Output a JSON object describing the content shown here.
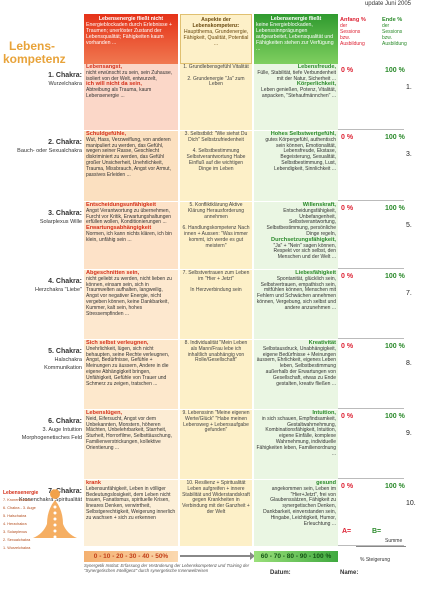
{
  "update": "update Juni 2005",
  "title": [
    "Lebens-",
    "kompetenz"
  ],
  "header": {
    "left_head": "Lebensenergie fließt nicht",
    "left_text": "Energieblockaden durch Erlebnisse + Traumen; unerlöster Zustand der Lebensqualität; Fähigkeiten kaum vorhanden ...",
    "mid_head": "Aspekte der Lebenskompetenz:",
    "mid_text": "Hauptthema, Grundenergie, Fähigkeit, Qualität, Potential ...",
    "right_head": "Lebensenergie fließt",
    "right_text": "keine Energieblockaden, Lebenssinnprägungen aufgearbeitet, Lebensqualität und Fähigkeiten stehen zur Verfügung ...",
    "anfang_title": "Anfang %",
    "anfang_lines": [
      "der",
      "Sessions",
      "bzw.",
      "Ausbildung"
    ],
    "ende_title": "Ende %",
    "ende_lines": [
      "der",
      "Sessions",
      "bzw.",
      "Ausbildung"
    ]
  },
  "rows": [
    {
      "chakra": "1. Chakra:",
      "chakra_sub": "Wurzelchakra",
      "left_head": "Lebensangst,",
      "left_text": "nicht erwünscht zu sein, sein Zuhause, isoliert von der Welt, entwurzelt,",
      "left_head2": "ich will nicht da sein,",
      "left_text2": "Abtreibung als Trauma, kaum Lebensenergie ...",
      "mid_text": "1. Grundlebensgefühl Vitalität\n\n2. Grundenergie \"Ja\" zum Leben",
      "right_head": "Lebensfreude,",
      "right_text": "Fülle, Stabilität, tiefe Verbundenheit mit der Natur, Sicherheit ...",
      "right_head2": "Körperlichkeit,",
      "right_text2": "Leben genießen, Potenz, Vitalität, anpacken, \"Stehaufmännchen\" ...",
      "start": "0 %",
      "end": "100 %",
      "num": "1."
    },
    {
      "chakra": "2. Chakra:",
      "chakra_sub": "Bauch- oder Sexualchakra",
      "left_head": "Schuldgefühle,",
      "left_text": "Wut, Hass, Verzweiflung, von anderen manipuliert zu werden, das Gefühl, wegen seiner Rasse, Geschlecht diskriminiert zu werden, das Gefühl großer Unsicherheit, Unehrlichkeit, Trauma, Missbrauch, Angst vor Armut, passives Erleiden ...",
      "left_head2": "",
      "left_text2": "",
      "mid_text": "3. Selbstbild: \"Wie siehst Du Dich\" Selbstzufriedenheit\n\n4. Selbstbestimmung Selbstverantwortung Habe Einfluß auf die wichtigen Dinge im Leben",
      "right_head": "Hohes Selbstwertgefühl,",
      "right_text": "gutes Körpergefühl, authentisch sein können, Emotionalität, Lebensfreude, Ekstase, Begeisterung, Sexualität, Selbstbestimmung, Lust, Lebendigkeit, Sinnlichkeit ...",
      "right_head2": "",
      "right_text2": "",
      "start": "0 %",
      "end": "100 %",
      "num": "3."
    },
    {
      "chakra": "3. Chakra:",
      "chakra_sub": "Solarplexus Wille",
      "left_head": "Entscheidungsunfähigkeit",
      "left_text": "Angst Verantwortung zu übernehmen, Furcht vor Kritik, Erwartungshaltungen erfüllen wollen, Konditionierungen ...",
      "left_head2": "Erwartungsabhängigkeit",
      "left_text2": "Normen, ich kann nichts klären, ich bin klein, unfähig sein ...",
      "mid_text": "5. Konfliktklärung Aktive Klärung Herausforderung annehmen\n\n6. Handlungskompetenz Nach innen + Aussen: \"Was immer kommt, ich werde es gut meistern\"",
      "right_head": "Willenskraft,",
      "right_text": "Entscheidungsfähigkeit, Unbefangenheit, Selbstverantwortung, Selbstbestimmung, persönliche Dinge regeln,",
      "right_head2": "Durchsetzungsfähigkeit,",
      "right_text2": "\"Ja\" + \"Nein\" sagen können, Respekt vor sich selbst, den Menschen und der Welt ...",
      "start": "0 %",
      "end": "100 %",
      "num": "5."
    },
    {
      "chakra": "4. Chakra:",
      "chakra_sub": "Herzchakra \"Liebe\"",
      "left_head": "Abgeschnitten sein,",
      "left_text": "nicht geliebt zu werden, nicht lieben zu können, einsam sein, sich in Traumwelten aufhalten, langweilig, Angst vor negativer Energie, nicht vergeben können, keine Dankbarkeit, Kummer, kalt sein, hohes Stressempfinden ...",
      "left_head2": "",
      "left_text2": "",
      "mid_text": "7. Selbstvertrauen zum Leben im \"Hier + Jetzt\"\n\nIn Herzverbindung sein",
      "right_head": "Liebesfähigkeit",
      "right_text": "Spontanität, glücklich sein, Selbstvertrauen, empathisch sein, mitfühlen können, Menschen mit Fehlern und Schwächen annehmen können, Vergebung, sich selbst und andere anzunehmen ...",
      "right_head2": "",
      "right_text2": "",
      "start": "0 %",
      "end": "100 %",
      "num": "7."
    },
    {
      "chakra": "5. Chakra:",
      "chakra_sub": "Halschakra",
      "chakra_sub2": "Kommunikation",
      "left_head": "Sich selbst verleugnen,",
      "left_text": "Unehrlichkeit, lügen, sich nicht behaupten, seine Rechte verleugnen, Angst, Bedürfnisse, Gefühle + Meinungen zu äussern, Andere in die eigene Abhängigkeit bringen, Unfähigkeit, Gefühle von Trauer und Schmerz zu zeigen, tratschen ...",
      "left_head2": "",
      "left_text2": "",
      "mid_text": "8. Individualität \"Mein Leben als Mann/Frau lebe ich inhaltlich unabhängig von Rolle/Gesellschaft\"",
      "right_head": "Kreativität",
      "right_text": "Selbstausdruck, Unabhängigkeit, eigene Bedürfnisse + Meinungen äussern, Ehrlichkeit, eigenes Leben leben, Selbstbestimmung außerhalb der Erwartungen von Gesellschaft, etwas zu Ende gestalten, kreativ fließen ...",
      "right_head2": "",
      "right_text2": "",
      "start": "0 %",
      "end": "100 %",
      "num": "8."
    },
    {
      "chakra": "6. Chakra:",
      "chakra_sub": "3. Auge Intuition Morphogenetisches Feld",
      "left_head": "Lebenslügen,",
      "left_text": "Neid, Eifersucht, Angst vor dem Unbekannten, Monstern, höheren Mächten, Unbelehrbarkeit, Starrheit, Sturheit, Horrorfilme, Selbsttäuschung, Familienverstrickungen, kollektive Orientierung ...",
      "left_head2": "",
      "left_text2": "",
      "mid_text": "9. Lebenssinn \"Meine eigenen Werte/Glück\" \"Habe meinen Lebensweg + Lebensaufgabe gefunden\"",
      "right_head": "Intuition,",
      "right_text": "in sich schauen, Empfindsamkeit, Gestaltwahrnehmung, Kombinationsfähigkeit, Intuition, eigene Einfälle, komplexe Wahrnehmung, individuelle Fähigkeiten leben, Familienordnung ...",
      "right_head2": "",
      "right_text2": "",
      "start": "0 %",
      "end": "100 %",
      "num": "9."
    },
    {
      "chakra": "7. Chakra:",
      "chakra_sub": "Kronenchakra Spiritualität",
      "left_head": "krank",
      "left_text": "Lebensunfähigkeit, Leben in völliger Bedeutungslosigkeit, dem Leben nicht trauen, Fanatismus, spirituelle Krisen, lineares Denken, verwirrtheit, Selbstgerechtigkeit, Weigerung innerlich zu wachsen + sich zu erkennen",
      "left_head2": "",
      "left_text2": "",
      "mid_text": "10. Resilienz + Spiritualität Leben aufgreifen + innere Stabilität und Widerstandskraft gegen Krankheiten in Verbindung mit der Ganzheit + der Welt",
      "right_head": "gesund",
      "right_text": "angekommen sein, Leben im \"Hier+Jetzt\", frei von Glaubenssätzen, Fähigkeit zu synergetischen Denken, Dankbarkeit, einverstanden sein, Hingabe, Leichtigkeit, Humor, Erleuchtung ...",
      "right_head2": "",
      "right_text2": "",
      "start": "0 %",
      "end": "100 %",
      "num": "10."
    }
  ],
  "figure_labels": [
    "7. Kronenchakra",
    "6. Chakra - 3. Auge",
    "5. Halschakra",
    "4. Herzchakra",
    "3. Solarplexus",
    "2. Sexualchakra",
    "1. Wurzelchakra"
  ],
  "figure_title": "Lebensenergie",
  "totals": {
    "a": "A=",
    "b": "B=",
    "summe": "Summe",
    "steigerung": "% Steigerung"
  },
  "scale_left": "0 - 10 - 20 - 30 - 40 - 50%",
  "scale_right": "60 - 70 - 80 - 90 - 100 %",
  "footer": "Synergetik Institut: Erfassung der Veränderung der Lebenskompetenz und Training der \"Synergetischen Intelligenz\" durch synergetische Innenweltreisen",
  "datum": "Datum:",
  "name": "Name:"
}
